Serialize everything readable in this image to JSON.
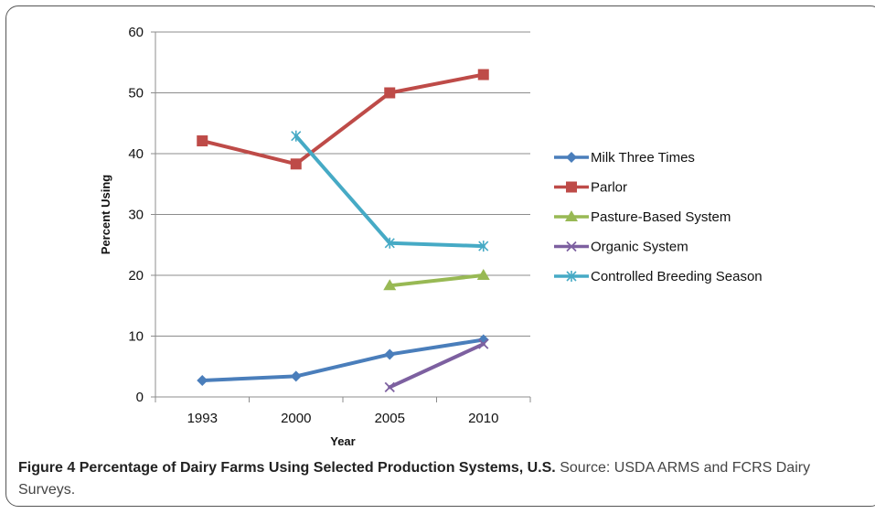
{
  "chart_data": {
    "type": "line",
    "categories": [
      "1993",
      "2000",
      "2005",
      "2010"
    ],
    "xlabel": "Year",
    "ylabel": "Percent Using",
    "ylim": [
      0,
      60
    ],
    "yticks": [
      0,
      10,
      20,
      30,
      40,
      50,
      60
    ],
    "grid": "horizontal",
    "legend_position": "right",
    "series": [
      {
        "name": "Milk Three Times",
        "color": "#4a7ebb",
        "marker": "diamond",
        "values": [
          2.7,
          3.4,
          7.0,
          9.4
        ]
      },
      {
        "name": "Parlor",
        "color": "#be4b48",
        "marker": "square",
        "values": [
          42.1,
          38.3,
          50.0,
          53.0
        ]
      },
      {
        "name": "Pasture-Based System",
        "color": "#98b954",
        "marker": "triangle",
        "values": [
          null,
          null,
          18.3,
          20.0
        ]
      },
      {
        "name": "Organic System",
        "color": "#7d60a0",
        "marker": "x",
        "values": [
          null,
          null,
          1.6,
          8.7
        ]
      },
      {
        "name": "Controlled Breeding Season",
        "color": "#46aac5",
        "marker": "star",
        "values": [
          null,
          42.9,
          25.3,
          24.8
        ]
      }
    ]
  },
  "caption": {
    "label": "Figure 4",
    "title": "Percentage of Dairy Farms Using Selected Production Systems, U.S.",
    "source": "Source: USDA ARMS and FCRS Dairy Surveys."
  }
}
